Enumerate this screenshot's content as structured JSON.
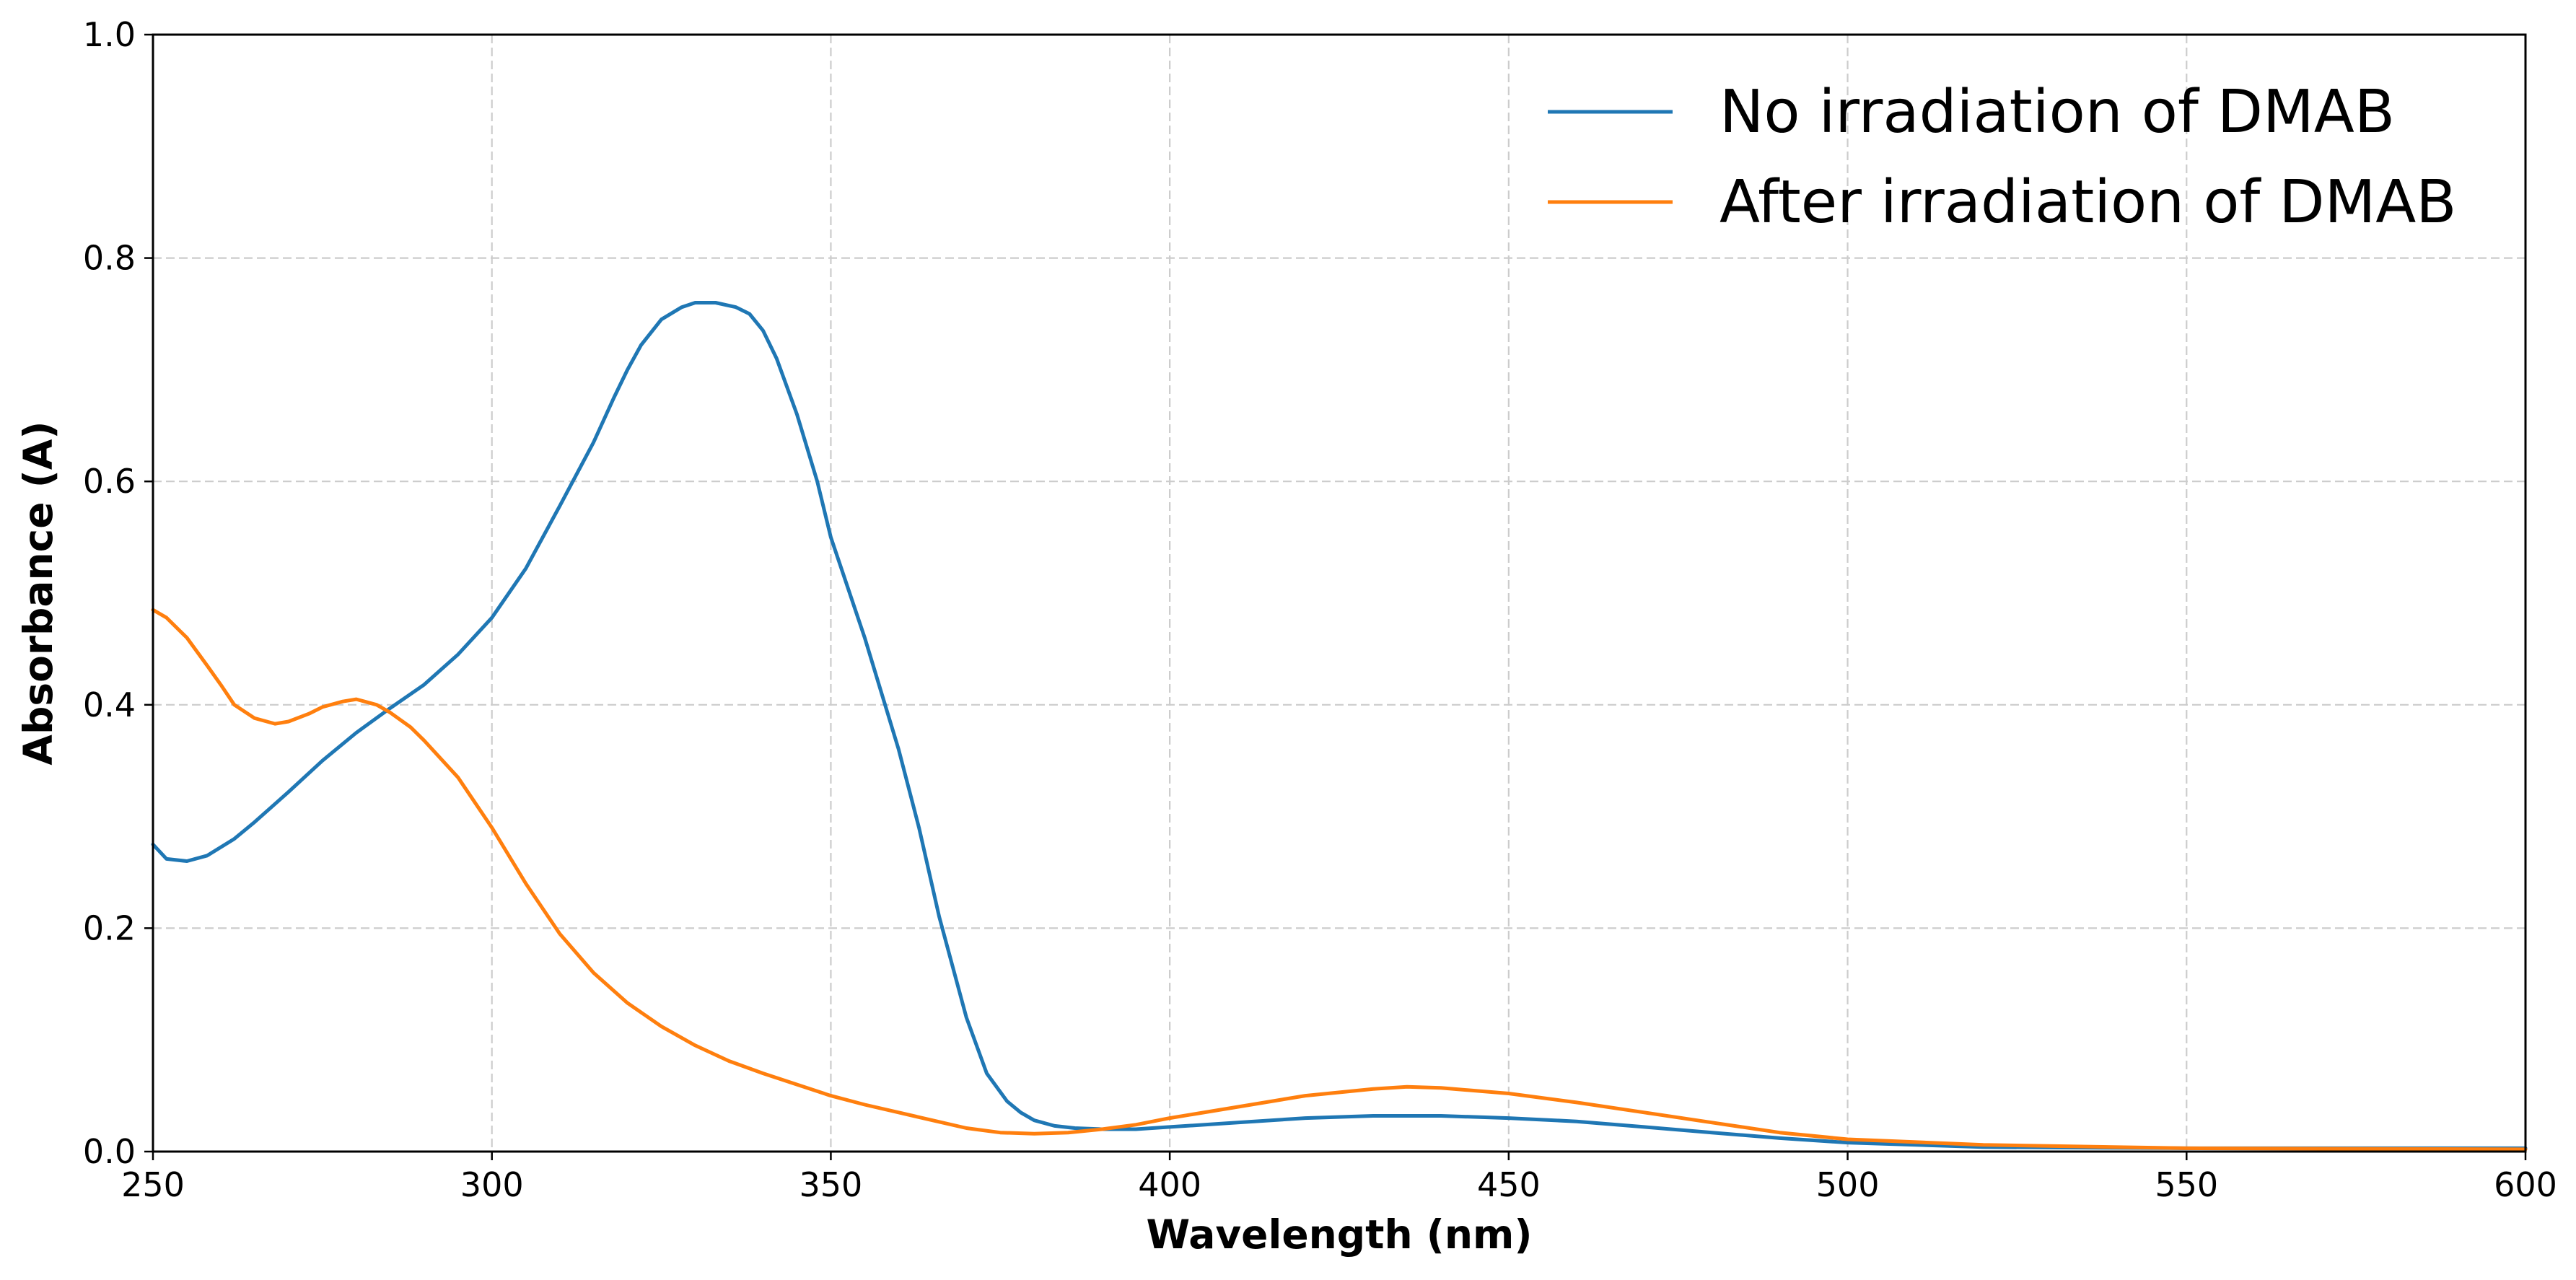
{
  "chart_data": {
    "type": "line",
    "title": "",
    "xlabel": "Wavelength (nm)",
    "ylabel": "Absorbance (A)",
    "xlim": [
      250,
      600
    ],
    "ylim": [
      0.0,
      1.0
    ],
    "xticks": [
      250,
      300,
      350,
      400,
      450,
      500,
      550,
      600
    ],
    "xtick_labels": [
      "250",
      "300",
      "350",
      "400",
      "450",
      "500",
      "550",
      "600"
    ],
    "yticks": [
      0.0,
      0.2,
      0.4,
      0.6,
      0.8,
      1.0
    ],
    "ytick_labels": [
      "0.0",
      "0.2",
      "0.4",
      "0.6",
      "0.8",
      "1.0"
    ],
    "grid": true,
    "legend_position": "top-right",
    "series": [
      {
        "name": "No irradiation of DMAB",
        "color": "#1f77b4",
        "x": [
          250,
          252,
          255,
          258,
          262,
          265,
          270,
          275,
          280,
          285,
          290,
          295,
          300,
          305,
          310,
          315,
          318,
          320,
          322,
          325,
          328,
          330,
          333,
          336,
          338,
          340,
          342,
          345,
          348,
          350,
          355,
          360,
          363,
          366,
          370,
          373,
          376,
          378,
          380,
          383,
          386,
          390,
          395,
          400,
          410,
          420,
          430,
          440,
          450,
          460,
          470,
          480,
          490,
          500,
          520,
          550,
          600
        ],
        "y": [
          0.275,
          0.262,
          0.26,
          0.265,
          0.28,
          0.295,
          0.322,
          0.35,
          0.375,
          0.397,
          0.418,
          0.445,
          0.478,
          0.522,
          0.578,
          0.635,
          0.675,
          0.7,
          0.722,
          0.745,
          0.756,
          0.76,
          0.76,
          0.756,
          0.75,
          0.735,
          0.71,
          0.66,
          0.6,
          0.55,
          0.46,
          0.36,
          0.29,
          0.21,
          0.12,
          0.07,
          0.045,
          0.035,
          0.028,
          0.023,
          0.021,
          0.02,
          0.02,
          0.022,
          0.026,
          0.03,
          0.032,
          0.032,
          0.03,
          0.027,
          0.022,
          0.017,
          0.012,
          0.008,
          0.004,
          0.003,
          0.003
        ]
      },
      {
        "name": "After irradiation of DMAB",
        "color": "#ff7f0e",
        "x": [
          250,
          252,
          255,
          258,
          260,
          262,
          265,
          268,
          270,
          273,
          275,
          278,
          280,
          283,
          285,
          288,
          290,
          295,
          300,
          305,
          310,
          315,
          320,
          325,
          330,
          335,
          340,
          345,
          350,
          355,
          360,
          365,
          370,
          375,
          380,
          385,
          390,
          395,
          400,
          410,
          420,
          430,
          435,
          440,
          450,
          460,
          470,
          480,
          490,
          500,
          520,
          550,
          600
        ],
        "y": [
          0.485,
          0.478,
          0.46,
          0.435,
          0.418,
          0.4,
          0.388,
          0.383,
          0.385,
          0.392,
          0.398,
          0.403,
          0.405,
          0.4,
          0.393,
          0.38,
          0.368,
          0.335,
          0.29,
          0.24,
          0.195,
          0.16,
          0.133,
          0.112,
          0.095,
          0.081,
          0.07,
          0.06,
          0.05,
          0.042,
          0.035,
          0.028,
          0.021,
          0.017,
          0.016,
          0.017,
          0.02,
          0.024,
          0.03,
          0.04,
          0.05,
          0.056,
          0.058,
          0.057,
          0.052,
          0.044,
          0.035,
          0.026,
          0.017,
          0.011,
          0.006,
          0.003,
          0.002
        ]
      }
    ]
  }
}
